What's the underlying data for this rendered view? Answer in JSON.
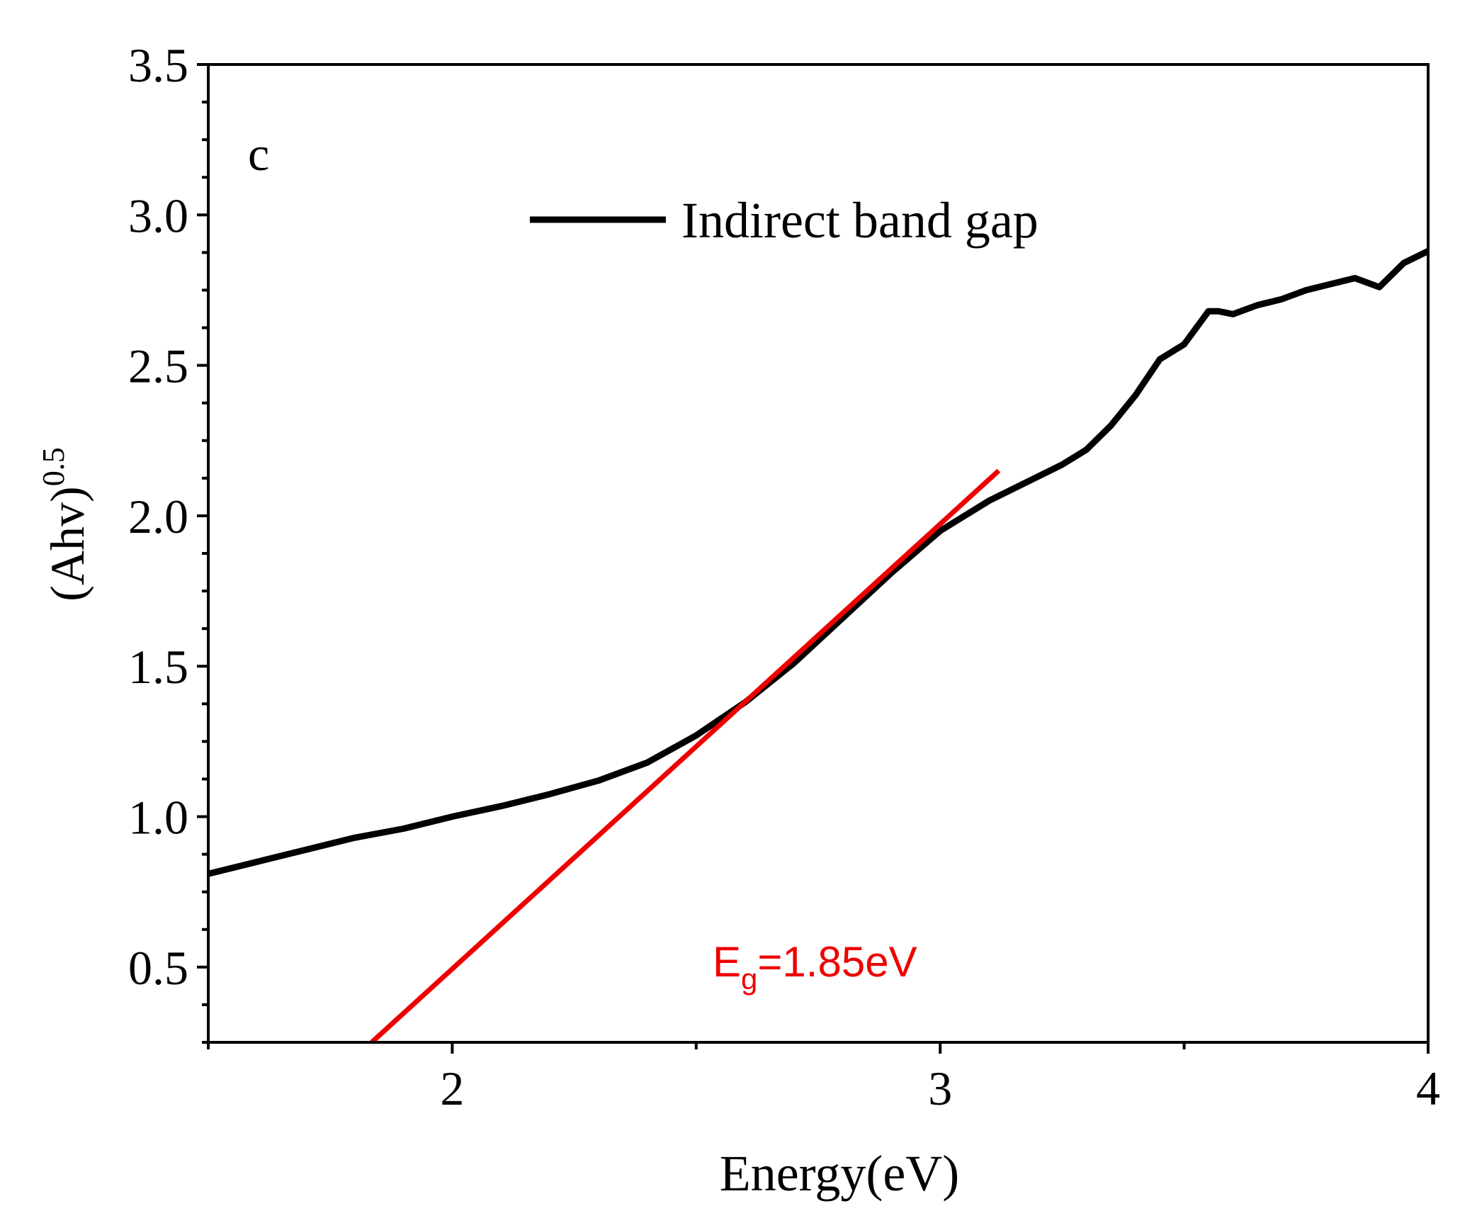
{
  "chart_data": {
    "type": "line",
    "panel_label": "c",
    "xlabel": "Energy(eV)",
    "ylabel": "(Ahv)",
    "ylabel_superscript": "0.5",
    "xlim": [
      1.5,
      4.0
    ],
    "ylim": [
      0.25,
      3.5
    ],
    "x_ticks": [
      2,
      3,
      4
    ],
    "x_minor_ticks": [
      1.5,
      2.5,
      3.5
    ],
    "y_ticks": [
      0.5,
      1.0,
      1.5,
      2.0,
      2.5,
      3.0,
      3.5
    ],
    "y_tick_labels": [
      "0.5",
      "1.0",
      "1.5",
      "2.0",
      "2.5",
      "3.0",
      "3.5"
    ],
    "y_minor_step": 0.125,
    "legend": {
      "label": "Indirect band gap",
      "placement": "top-center"
    },
    "series": [
      {
        "name": "Indirect band gap",
        "color": "#000000",
        "x": [
          1.5,
          1.6,
          1.7,
          1.8,
          1.9,
          2.0,
          2.1,
          2.2,
          2.3,
          2.4,
          2.5,
          2.6,
          2.7,
          2.8,
          2.9,
          3.0,
          3.1,
          3.2,
          3.25,
          3.3,
          3.35,
          3.4,
          3.45,
          3.5,
          3.55,
          3.57,
          3.6,
          3.65,
          3.7,
          3.75,
          3.8,
          3.85,
          3.9,
          3.95,
          4.0
        ],
        "y": [
          0.81,
          0.85,
          0.89,
          0.93,
          0.96,
          1.0,
          1.035,
          1.075,
          1.12,
          1.18,
          1.27,
          1.38,
          1.51,
          1.66,
          1.81,
          1.95,
          2.05,
          2.13,
          2.17,
          2.22,
          2.3,
          2.4,
          2.52,
          2.57,
          2.68,
          2.68,
          2.67,
          2.7,
          2.72,
          2.75,
          2.77,
          2.79,
          2.76,
          2.84,
          2.88
        ]
      },
      {
        "name": "Linear fit",
        "color": "#ee0000",
        "x": [
          1.835,
          3.12
        ],
        "y": [
          0.25,
          2.15
        ]
      }
    ],
    "annotation": {
      "base": "E",
      "subscript": "g",
      "value": "=1.85eV",
      "color": "#ee0000"
    }
  }
}
